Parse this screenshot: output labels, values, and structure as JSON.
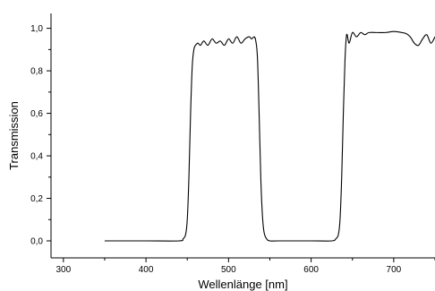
{
  "chart_data": {
    "type": "line",
    "xlabel": "Wellenlänge [nm]",
    "ylabel": "Transmission",
    "xlim": [
      285,
      750
    ],
    "ylim": [
      -0.08,
      1.07
    ],
    "x_ticks": [
      300,
      400,
      500,
      600,
      700
    ],
    "x_tick_labels": [
      "300",
      "400",
      "500",
      "600",
      "700"
    ],
    "y_ticks": [
      0.0,
      0.2,
      0.4,
      0.6,
      0.8,
      1.0
    ],
    "y_tick_labels": [
      "0,0",
      "0,2",
      "0,4",
      "0,6",
      "0,8",
      "1,0"
    ],
    "grid": false,
    "series": [
      {
        "color": "#000000",
        "x": [
          350,
          400,
          440,
          445,
          448,
          450,
          452,
          454,
          456,
          458,
          460,
          463,
          466,
          470,
          475,
          480,
          485,
          490,
          495,
          500,
          505,
          510,
          515,
          520,
          525,
          528,
          531,
          533,
          535,
          537,
          539,
          541,
          543,
          546,
          550,
          560,
          600,
          625,
          630,
          633,
          635,
          637,
          639,
          641,
          643,
          646,
          650,
          655,
          660,
          665,
          670,
          680,
          690,
          700,
          710,
          715,
          720,
          725,
          730,
          735,
          740,
          745,
          750
        ],
        "y": [
          0.0,
          0.0,
          0.0,
          0.01,
          0.03,
          0.1,
          0.3,
          0.6,
          0.82,
          0.9,
          0.92,
          0.93,
          0.92,
          0.94,
          0.92,
          0.95,
          0.93,
          0.94,
          0.92,
          0.95,
          0.93,
          0.96,
          0.93,
          0.95,
          0.96,
          0.95,
          0.96,
          0.94,
          0.86,
          0.6,
          0.3,
          0.12,
          0.04,
          0.01,
          0.0,
          0.0,
          0.0,
          0.0,
          0.01,
          0.03,
          0.1,
          0.3,
          0.6,
          0.85,
          0.97,
          0.93,
          0.98,
          0.96,
          0.98,
          0.97,
          0.98,
          0.98,
          0.98,
          0.985,
          0.98,
          0.975,
          0.96,
          0.93,
          0.92,
          0.95,
          0.97,
          0.93,
          0.96
        ]
      }
    ]
  }
}
